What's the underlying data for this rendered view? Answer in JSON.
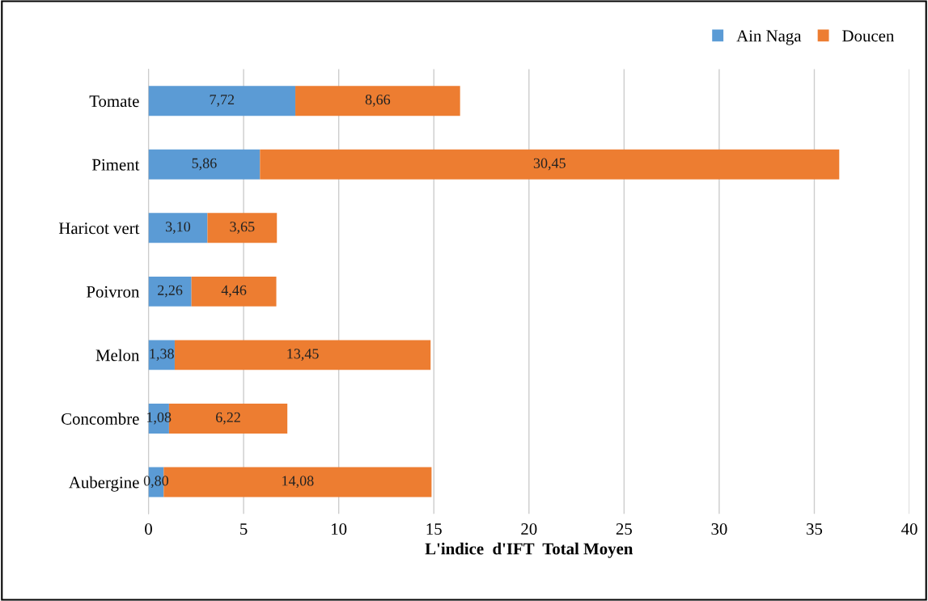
{
  "chart_data": {
    "type": "bar",
    "orientation": "horizontal",
    "stacked": true,
    "xlabel": "L'indice  d'IFT  Total Moyen",
    "categories": [
      "Tomate",
      "Piment",
      "Haricot vert",
      "Poivron",
      "Melon",
      "Concombre",
      "Aubergine"
    ],
    "series": [
      {
        "name": "Ain Naga",
        "color": "#5b9bd5",
        "values": [
          7.72,
          5.86,
          3.1,
          2.26,
          1.38,
          1.08,
          0.8
        ],
        "value_labels": [
          "7,72",
          "5,86",
          "3,10",
          "2,26",
          "1,38",
          "1,08",
          "0,80"
        ]
      },
      {
        "name": "Doucen",
        "color": "#ed7d31",
        "values": [
          8.66,
          30.45,
          3.65,
          4.46,
          13.45,
          6.22,
          14.08
        ],
        "value_labels": [
          "8,66",
          "30,45",
          "3,65",
          "4,46",
          "13,45",
          "6,22",
          "14,08"
        ]
      }
    ],
    "xlim": [
      0,
      40
    ],
    "xticks": [
      0,
      5,
      10,
      15,
      20,
      25,
      30,
      35,
      40
    ],
    "grid": "x",
    "legend": "top right"
  }
}
